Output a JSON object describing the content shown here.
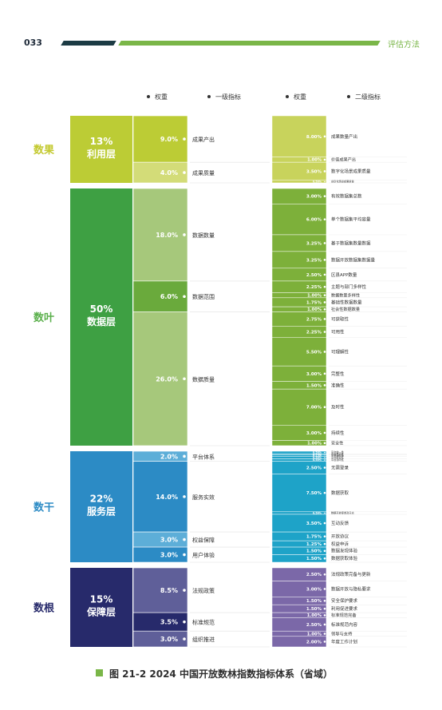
{
  "header": {
    "page_number": "033",
    "section_title": "评估方法"
  },
  "caption": "图 21-2  2024 中国开放数林指数指标体系（省域）",
  "chart_data": {
    "type": "table",
    "column_headers": {
      "weight1": "权重",
      "level1": "一级指标",
      "weight2": "权重",
      "level2": "二级指标"
    },
    "layers": [
      {
        "name": "数果",
        "weight": "13%",
        "layer": "利用层",
        "value": 13,
        "color": "#bccc35",
        "label_color": "#c3c92e",
        "level1": [
          {
            "weight": "9.0%",
            "value": 9.0,
            "name": "成果产出",
            "color": "#bccc35",
            "level2": [
              {
                "weight": "8.00%",
                "value": 8.0,
                "name": "成果数量产出"
              },
              {
                "weight": "1.00%",
                "value": 1.0,
                "name": "价值成果产出"
              }
            ]
          },
          {
            "weight": "4.0%",
            "value": 4.0,
            "name": "成果质量",
            "color": "#d3dc78",
            "level2": [
              {
                "weight": "3.50%",
                "value": 3.5,
                "name": "数字化场景成果质量"
              },
              {
                "weight": "0.50%",
                "value": 0.5,
                "name": "创意化场景成果质量"
              }
            ]
          }
        ]
      },
      {
        "name": "数叶",
        "weight": "50%",
        "layer": "数据层",
        "value": 50,
        "color": "#3ea043",
        "label_color": "#5bb04c",
        "level1": [
          {
            "weight": "18.0%",
            "value": 18.0,
            "name": "数据数量",
            "color": "#a6c87b",
            "level2": [
              {
                "weight": "3.00%",
                "value": 3.0,
                "name": "有效数据集总数"
              },
              {
                "weight": "6.00%",
                "value": 6.0,
                "name": "单个数据集平均容量"
              },
              {
                "weight": "3.25%",
                "value": 3.25,
                "name": "基于数据集数量数据"
              },
              {
                "weight": "3.25%",
                "value": 3.25,
                "name": "数据开放数据集数据量"
              },
              {
                "weight": "2.50%",
                "value": 2.5,
                "name": "区县APP数量"
              }
            ]
          },
          {
            "weight": "6.0%",
            "value": 6.0,
            "name": "数据范围",
            "color": "#6aaa3c",
            "level2": [
              {
                "weight": "2.25%",
                "value": 2.25,
                "name": "主题与部门多样性"
              },
              {
                "weight": "1.00%",
                "value": 1.0,
                "name": "数据数量多样性"
              },
              {
                "weight": "1.75%",
                "value": 1.75,
                "name": "基础性数据数量"
              },
              {
                "weight": "1.00%",
                "value": 1.0,
                "name": "社会性数据数量"
              }
            ]
          },
          {
            "weight": "26.0%",
            "value": 26.0,
            "name": "数据质量",
            "color": "#a6c87b",
            "level2": [
              {
                "weight": "2.75%",
                "value": 2.75,
                "name": "可获取性"
              },
              {
                "weight": "2.25%",
                "value": 2.25,
                "name": "可用性"
              },
              {
                "weight": "5.50%",
                "value": 5.5,
                "name": "可理解性"
              },
              {
                "weight": "3.00%",
                "value": 3.0,
                "name": "完整性"
              },
              {
                "weight": "1.50%",
                "value": 1.5,
                "name": "准确性"
              },
              {
                "weight": "7.00%",
                "value": 7.0,
                "name": "及时性"
              },
              {
                "weight": "3.00%",
                "value": 3.0,
                "name": "持续性"
              },
              {
                "weight": "1.00%",
                "value": 1.0,
                "name": "安全性"
              }
            ]
          }
        ]
      },
      {
        "name": "数干",
        "weight": "22%",
        "layer": "服务层",
        "value": 22,
        "color": "#2c8bc5",
        "label_color": "#2c8bc5",
        "level1": [
          {
            "weight": "2.0%",
            "value": 2.0,
            "name": "平台体系",
            "color": "#5daed8",
            "level2": [
              {
                "weight": "0.50%",
                "value": 0.5,
                "name": "平台统一性"
              },
              {
                "weight": "0.25%",
                "value": 0.25,
                "name": "平台集约性"
              },
              {
                "weight": "0.25%",
                "value": 0.25,
                "name": "平台导航性"
              },
              {
                "weight": "0.50%",
                "value": 0.5,
                "name": "平台联动性"
              },
              {
                "weight": "0.50%",
                "value": 0.5,
                "name": "平台协同性"
              }
            ]
          },
          {
            "weight": "14.0%",
            "value": 14.0,
            "name": "服务实效",
            "color": "#2c8bc5",
            "level2": [
              {
                "weight": "2.50%",
                "value": 2.5,
                "name": "无需登录"
              },
              {
                "weight": "7.50%",
                "value": 7.5,
                "name": "数据获取"
              },
              {
                "weight": "0.50%",
                "value": 0.5,
                "name": "数据开放渠道及日志"
              },
              {
                "weight": "3.50%",
                "value": 3.5,
                "name": "互动反馈"
              }
            ]
          },
          {
            "weight": "3.0%",
            "value": 3.0,
            "name": "权益保障",
            "color": "#5daed8",
            "level2": [
              {
                "weight": "1.75%",
                "value": 1.75,
                "name": "开放协议"
              },
              {
                "weight": "1.25%",
                "value": 1.25,
                "name": "权益申诉"
              }
            ]
          },
          {
            "weight": "3.0%",
            "value": 3.0,
            "name": "用户体验",
            "color": "#2c8bc5",
            "level2": [
              {
                "weight": "1.50%",
                "value": 1.5,
                "name": "数据发现体验"
              },
              {
                "weight": "1.50%",
                "value": 1.5,
                "name": "数据获取体验"
              }
            ]
          }
        ]
      },
      {
        "name": "数根",
        "weight": "15%",
        "layer": "保障层",
        "value": 15,
        "color": "#272a6b",
        "label_color": "#272a6b",
        "level1": [
          {
            "weight": "8.5%",
            "value": 8.5,
            "name": "法规政策",
            "color": "#5f5f99",
            "level2": [
              {
                "weight": "2.50%",
                "value": 2.5,
                "name": "法规政策完备与更新"
              },
              {
                "weight": "3.00%",
                "value": 3.0,
                "name": "数据开放与隐私要求"
              },
              {
                "weight": "1.50%",
                "value": 1.5,
                "name": "安全保护要求"
              },
              {
                "weight": "1.50%",
                "value": 1.5,
                "name": "利用促进要求"
              }
            ]
          },
          {
            "weight": "3.5%",
            "value": 3.5,
            "name": "标准规范",
            "color": "#272a6b",
            "level2": [
              {
                "weight": "1.00%",
                "value": 1.0,
                "name": "标准规范完备"
              },
              {
                "weight": "2.50%",
                "value": 2.5,
                "name": "标准规范内容"
              }
            ]
          },
          {
            "weight": "3.0%",
            "value": 3.0,
            "name": "组织推进",
            "color": "#5f5f99",
            "level2": [
              {
                "weight": "1.00%",
                "value": 1.0,
                "name": "领导与支持"
              },
              {
                "weight": "2.00%",
                "value": 2.0,
                "name": "年度工作计划"
              }
            ]
          }
        ]
      }
    ]
  }
}
